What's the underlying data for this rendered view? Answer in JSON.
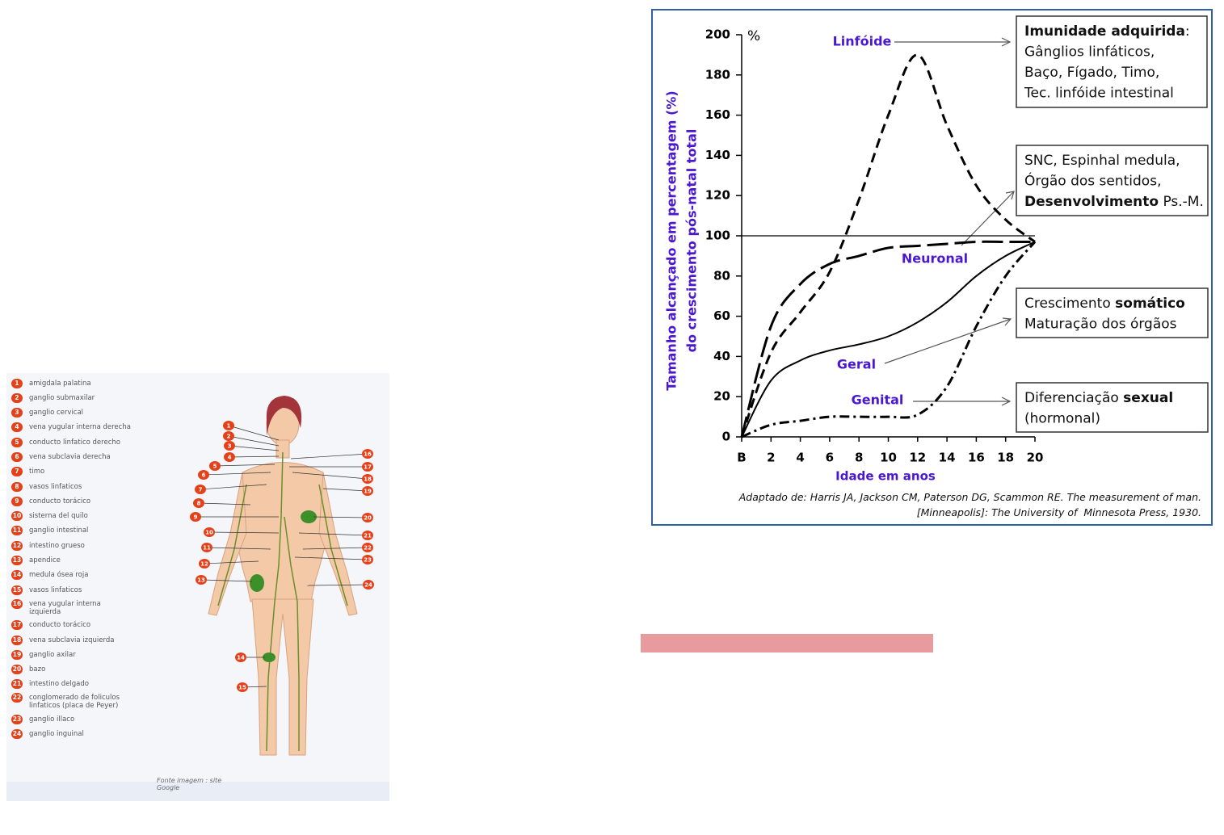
{
  "chart_data": {
    "type": "line",
    "x": [
      0,
      2,
      4,
      6,
      8,
      10,
      12,
      14,
      16,
      18,
      20
    ],
    "xlim": [
      0,
      20
    ],
    "xticks": [
      {
        "value": 0,
        "label": "B"
      },
      2,
      4,
      6,
      8,
      10,
      12,
      14,
      16,
      18,
      20
    ],
    "ylim": [
      0,
      200
    ],
    "yticks": [
      0,
      20,
      40,
      60,
      80,
      100,
      120,
      140,
      160,
      180,
      200
    ],
    "y_unit": "%",
    "x_label": "Idade em anos",
    "y_label": [
      "Tamanho alcançado em percentagem (%)",
      "do crescimento pós-natal total"
    ],
    "reference_line": 100,
    "series": [
      {
        "name": "Linfóide",
        "color": "#000000",
        "line_style": "dashed",
        "values": [
          0,
          42,
          62,
          82,
          118,
          160,
          190,
          155,
          125,
          108,
          97
        ]
      },
      {
        "name": "Neuronal",
        "color": "#000000",
        "line_style": "long-dashed",
        "values": [
          0,
          55,
          76,
          86,
          90,
          94,
          95,
          96,
          97,
          97,
          97
        ]
      },
      {
        "name": "Geral",
        "color": "#000000",
        "line_style": "solid",
        "values": [
          0,
          28,
          38,
          43,
          46,
          50,
          57,
          67,
          80,
          90,
          97
        ]
      },
      {
        "name": "Genital",
        "color": "#000000",
        "line_style": "dash-dot",
        "values": [
          0,
          6,
          8,
          10,
          10,
          10,
          11,
          25,
          55,
          80,
          97
        ]
      }
    ],
    "annotations": [
      {
        "lines": [
          [
            {
              "text": "Imunidade adquirida",
              "bold": true
            },
            {
              "text": ":",
              "bold": false
            }
          ],
          [
            {
              "text": "Gânglios linfáticos,",
              "bold": false
            }
          ],
          [
            {
              "text": "Baço, Fígado, Timo,",
              "bold": false
            }
          ],
          [
            {
              "text": "Tec. linfóide intestinal",
              "bold": false
            }
          ]
        ]
      },
      {
        "lines": [
          [
            {
              "text": "SNC, Espinhal medula,",
              "bold": false
            }
          ],
          [
            {
              "text": "Órgão dos sentidos,",
              "bold": false
            }
          ],
          [
            {
              "text": "Desenvolvimento",
              "bold": true
            },
            {
              "text": " Ps.-M.",
              "bold": false
            }
          ]
        ]
      },
      {
        "lines": [
          [
            {
              "text": "Crescimento ",
              "bold": false
            },
            {
              "text": "somático",
              "bold": true
            }
          ],
          [
            {
              "text": "Maturação dos órgãos",
              "bold": false
            }
          ]
        ]
      },
      {
        "lines": [
          [
            {
              "text": "Diferenciação ",
              "bold": false
            },
            {
              "text": "sexual",
              "bold": true
            }
          ],
          [
            {
              "text": "(hormonal)",
              "bold": false
            }
          ]
        ]
      }
    ],
    "source": [
      "Adaptado de: Harris JA, Jackson CM, Paterson DG, Scammon RE. The measurement of man.",
      "[Minneapolis]: The University of  Minnesota Press, 1930."
    ]
  },
  "figure": {
    "items": [
      {
        "number": "1",
        "label": "amigdala palatina"
      },
      {
        "number": "2",
        "label": "ganglio submaxilar"
      },
      {
        "number": "3",
        "label": "ganglio cervical"
      },
      {
        "number": "4",
        "label": "vena yugular interna derecha"
      },
      {
        "number": "5",
        "label": "conducto linfatico derecho"
      },
      {
        "number": "6",
        "label": "vena subclavia derecha"
      },
      {
        "number": "7",
        "label": "timo"
      },
      {
        "number": "8",
        "label": "vasos linfaticos"
      },
      {
        "number": "9",
        "label": "conducto torácico"
      },
      {
        "number": "10",
        "label": "sisterna del quilo"
      },
      {
        "number": "11",
        "label": "ganglio intestinal"
      },
      {
        "number": "12",
        "label": "intestino grueso"
      },
      {
        "number": "13",
        "label": "apendice"
      },
      {
        "number": "14",
        "label": "medula ósea roja"
      },
      {
        "number": "15",
        "label": "vasos linfaticos"
      },
      {
        "number": "16",
        "label": "vena yugular interna izquierda"
      },
      {
        "number": "17",
        "label": "conducto torácico"
      },
      {
        "number": "18",
        "label": "vena subclavia izquierda"
      },
      {
        "number": "19",
        "label": "ganglio axilar"
      },
      {
        "number": "20",
        "label": "bazo"
      },
      {
        "number": "21",
        "label": "intestino delgado"
      },
      {
        "number": "22",
        "label": "conglomerado de foliculos linfaticos (placa de Peyer)"
      },
      {
        "number": "23",
        "label": "ganglio illaco"
      },
      {
        "number": "24",
        "label": "ganglio inguinal"
      }
    ],
    "source": "Fonte imagem : site Google"
  }
}
